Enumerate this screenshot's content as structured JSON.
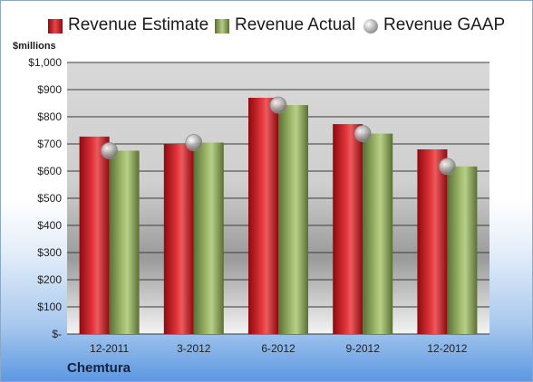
{
  "chart_data": {
    "type": "bar",
    "categories": [
      "12-2011",
      "3-2012",
      "6-2012",
      "9-2012",
      "12-2012"
    ],
    "series": [
      {
        "name": "Revenue Estimate",
        "values": [
          727,
          700,
          870,
          773,
          680
        ],
        "color": "#d0161c",
        "mark": "bar"
      },
      {
        "name": "Revenue Actual",
        "values": [
          675,
          705,
          843,
          738,
          617
        ],
        "color": "#8aa656",
        "mark": "bar"
      },
      {
        "name": "Revenue GAAP",
        "values": [
          675,
          705,
          843,
          738,
          617
        ],
        "color": "#b4b4b4",
        "mark": "point"
      }
    ],
    "ylabel": "$millions",
    "ylim": [
      0,
      1000
    ],
    "yticks": [
      0,
      100,
      200,
      300,
      400,
      500,
      600,
      700,
      800,
      900,
      1000
    ],
    "ytick_labels": [
      "$-",
      "$100",
      "$200",
      "$300",
      "$400",
      "$500",
      "$600",
      "$700",
      "$800",
      "$900",
      "$1,000"
    ],
    "grid": true,
    "legend": "top"
  },
  "company": "Chemtura"
}
